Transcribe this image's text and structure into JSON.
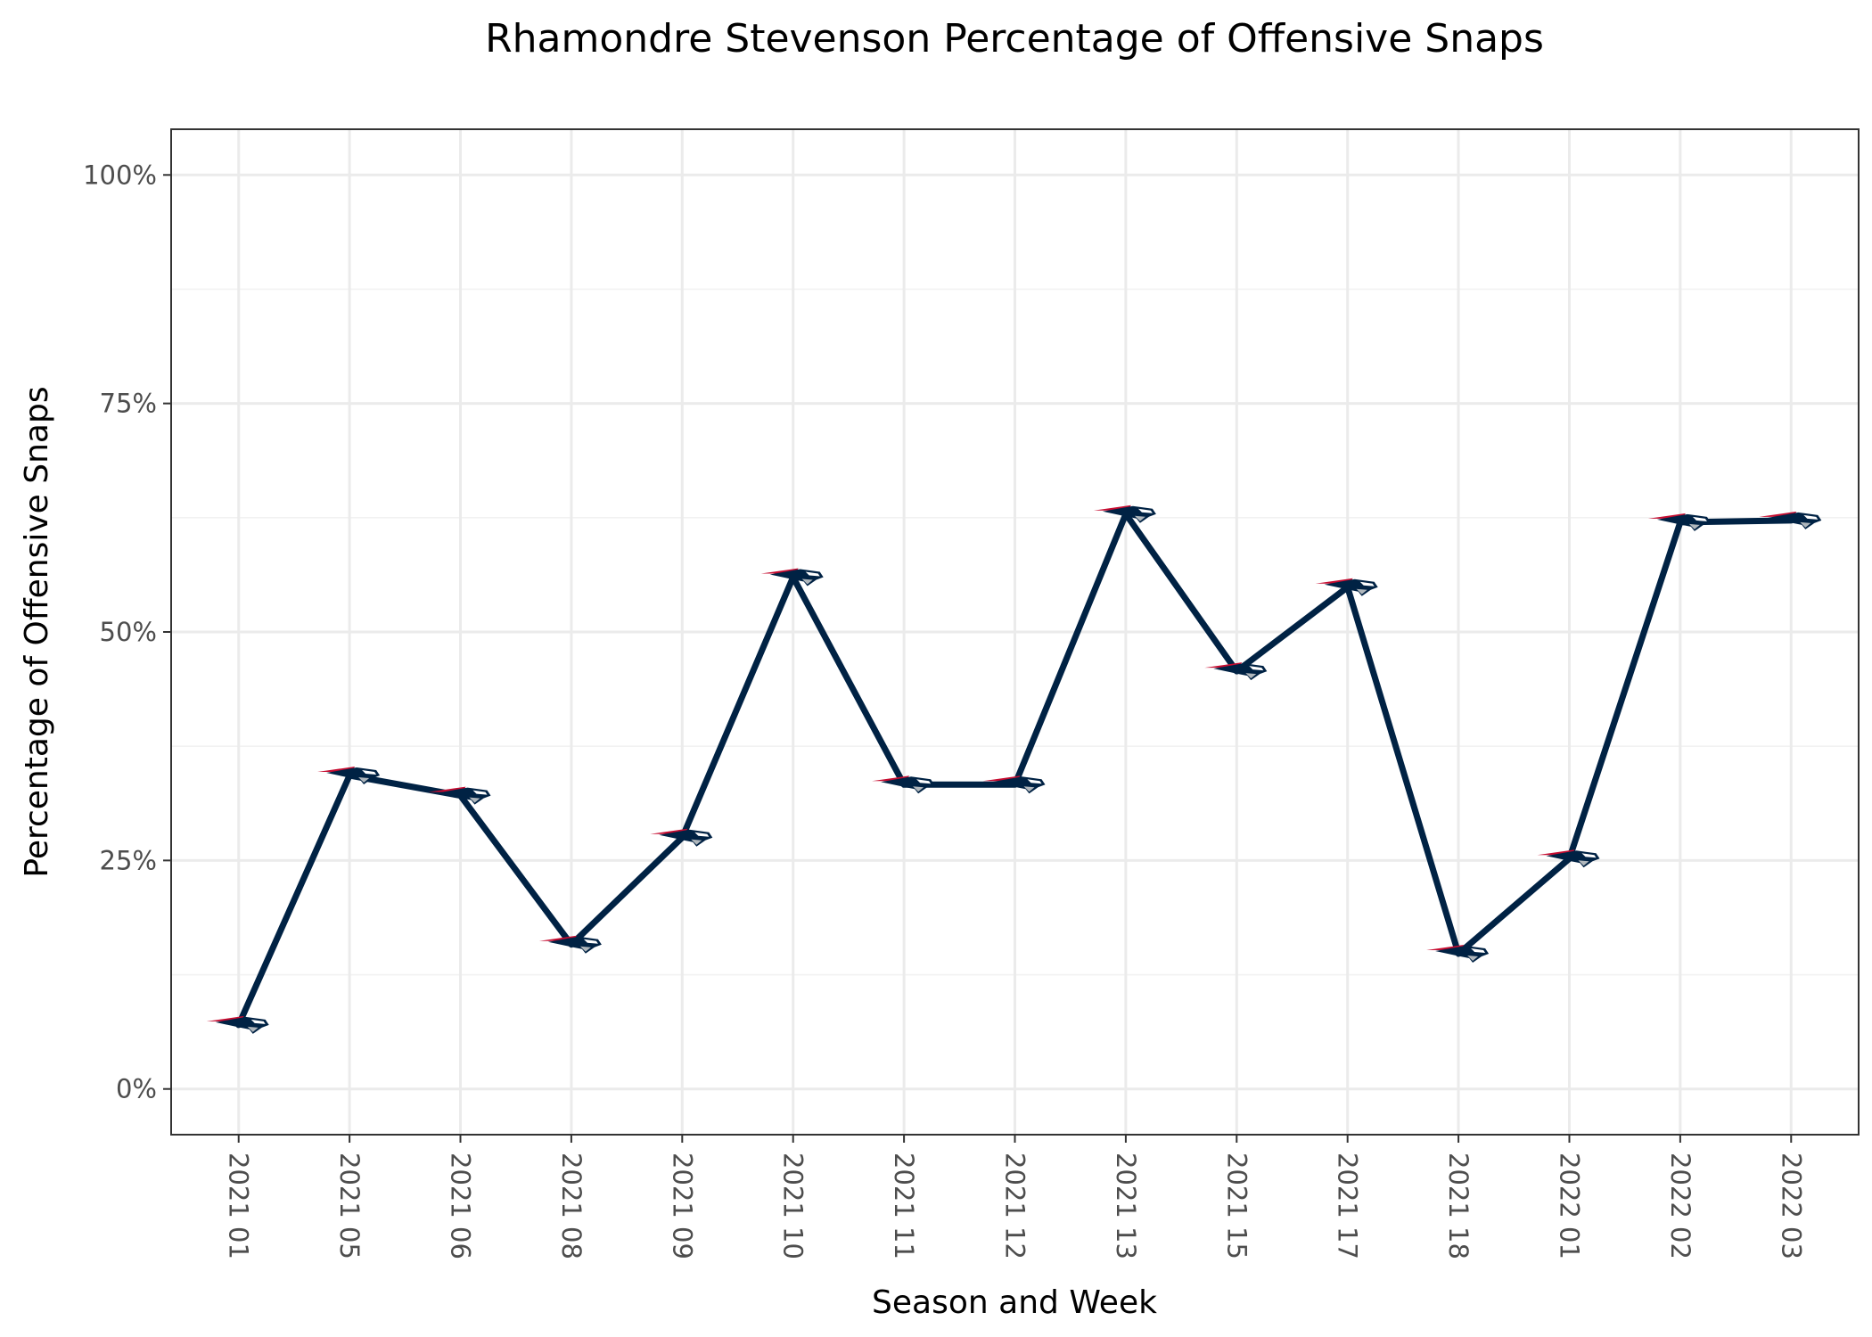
{
  "chart_data": {
    "type": "line",
    "title": "Rhamondre Stevenson Percentage of Offensive Snaps",
    "xlabel": "Season and Week",
    "ylabel": "Percentage of Offensive Snaps",
    "categories": [
      "2021 01",
      "2021 05",
      "2021 06",
      "2021 08",
      "2021 09",
      "2021 10",
      "2021 11",
      "2021 12",
      "2021 13",
      "2021 15",
      "2021 17",
      "2021 18",
      "2022 01",
      "2022 02",
      "2022 03"
    ],
    "series": [
      {
        "values": [
          7,
          34.3,
          32.1,
          15.8,
          27.5,
          56,
          33.3,
          33.3,
          62.9,
          45.7,
          54.9,
          14.8,
          25.2,
          62,
          62.2
        ]
      }
    ],
    "ylim": [
      -5,
      105
    ],
    "yticks": [
      {
        "value": 0,
        "label": "0%"
      },
      {
        "value": 25,
        "label": "25%"
      },
      {
        "value": 50,
        "label": "50%"
      },
      {
        "value": 75,
        "label": "75%"
      },
      {
        "value": 100,
        "label": "100%"
      }
    ],
    "grid": true,
    "legend": "none",
    "line_color": "#002244",
    "marker_icon": "patriots-logo-icon",
    "marker_colors": {
      "navy": "#002244",
      "red": "#C60C30",
      "silver": "#B0B7BC"
    }
  }
}
